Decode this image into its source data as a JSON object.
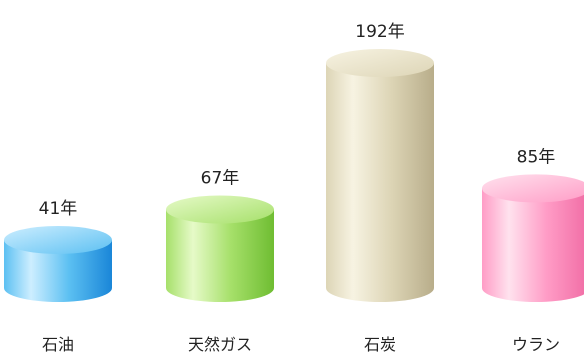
{
  "chart_data": {
    "type": "bar",
    "categories": [
      "石油",
      "天然ガス",
      "石炭",
      "ウラン"
    ],
    "values": [
      41,
      67,
      192,
      85
    ],
    "value_labels": [
      "41年",
      "67年",
      "192年",
      "85年"
    ],
    "ylim": [
      0,
      192
    ],
    "grid": false,
    "legend": "none",
    "colors": {
      "石油": {
        "light": "#cdeeff",
        "mid": "#5cc0f2",
        "dark": "#1a86d8"
      },
      "天然ガス": {
        "light": "#e6fac8",
        "mid": "#a6e06a",
        "dark": "#6fbd32"
      },
      "石炭": {
        "light": "#f7f3e2",
        "mid": "#ddd5b6",
        "dark": "#b8ad8a"
      },
      "ウラン": {
        "light": "#ffe2ee",
        "mid": "#ff9cc6",
        "dark": "#f06aa3"
      }
    }
  }
}
